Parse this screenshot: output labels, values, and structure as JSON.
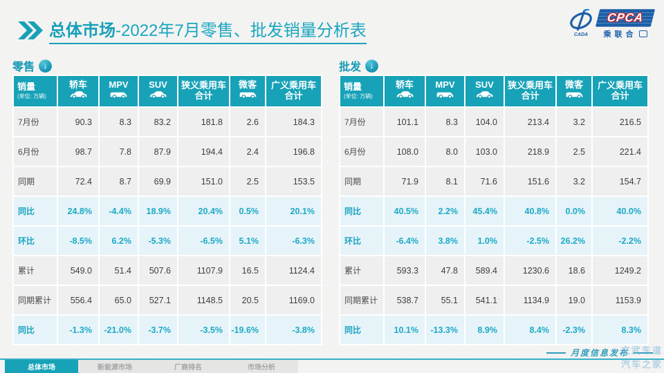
{
  "header": {
    "title_primary": "总体市场",
    "title_secondary": "-2022年7月零售、批发销量分析表",
    "accent_color": "#17a2b8"
  },
  "logo": {
    "acronym": "CPCA",
    "cn_name": "乘联合",
    "cada": "CADA"
  },
  "columns": [
    {
      "label": "销量",
      "sub": "(单位: 万辆)"
    },
    {
      "label": "轿车",
      "icon": "sedan-icon"
    },
    {
      "label": "MPV",
      "icon": "mpv-icon"
    },
    {
      "label": "SUV",
      "icon": "suv-icon"
    },
    {
      "label": "狭义乘用车",
      "label2": "合计"
    },
    {
      "label": "微客",
      "icon": "minibus-icon"
    },
    {
      "label": "广义乘用车",
      "label2": "合计"
    }
  ],
  "tables": [
    {
      "id": "retail",
      "section_label": "零售",
      "rows": [
        {
          "label": "7月份",
          "type": "normal",
          "cells": [
            "90.3",
            "8.3",
            "83.2",
            "181.8",
            "2.6",
            "184.3"
          ]
        },
        {
          "label": "6月份",
          "type": "normal",
          "cells": [
            "98.7",
            "7.8",
            "87.9",
            "194.4",
            "2.4",
            "196.8"
          ]
        },
        {
          "label": "同期",
          "type": "normal",
          "cells": [
            "72.4",
            "8.7",
            "69.9",
            "151.0",
            "2.5",
            "153.5"
          ]
        },
        {
          "label": "同比",
          "type": "pct",
          "cells": [
            "24.8%",
            "-4.4%",
            "18.9%",
            "20.4%",
            "0.5%",
            "20.1%"
          ]
        },
        {
          "label": "环比",
          "type": "pct",
          "cells": [
            "-8.5%",
            "6.2%",
            "-5.3%",
            "-6.5%",
            "5.1%",
            "-6.3%"
          ]
        },
        {
          "label": "累计",
          "type": "normal",
          "cells": [
            "549.0",
            "51.4",
            "507.6",
            "1107.9",
            "16.5",
            "1124.4"
          ]
        },
        {
          "label": "同期累计",
          "type": "normal",
          "cells": [
            "556.4",
            "65.0",
            "527.1",
            "1148.5",
            "20.5",
            "1169.0"
          ]
        },
        {
          "label": "同比",
          "type": "pct",
          "cells": [
            "-1.3%",
            "-21.0%",
            "-3.7%",
            "-3.5%",
            "-19.6%",
            "-3.8%"
          ]
        }
      ]
    },
    {
      "id": "wholesale",
      "section_label": "批发",
      "rows": [
        {
          "label": "7月份",
          "type": "normal",
          "cells": [
            "101.1",
            "8.3",
            "104.0",
            "213.4",
            "3.2",
            "216.5"
          ]
        },
        {
          "label": "6月份",
          "type": "normal",
          "cells": [
            "108.0",
            "8.0",
            "103.0",
            "218.9",
            "2.5",
            "221.4"
          ]
        },
        {
          "label": "同期",
          "type": "normal",
          "cells": [
            "71.9",
            "8.1",
            "71.6",
            "151.6",
            "3.2",
            "154.7"
          ]
        },
        {
          "label": "同比",
          "type": "pct",
          "cells": [
            "40.5%",
            "2.2%",
            "45.4%",
            "40.8%",
            "0.0%",
            "40.0%"
          ]
        },
        {
          "label": "环比",
          "type": "pct",
          "cells": [
            "-6.4%",
            "3.8%",
            "1.0%",
            "-2.5%",
            "26.2%",
            "-2.2%"
          ]
        },
        {
          "label": "累计",
          "type": "normal",
          "cells": [
            "593.3",
            "47.8",
            "589.4",
            "1230.6",
            "18.6",
            "1249.2"
          ]
        },
        {
          "label": "同期累计",
          "type": "normal",
          "cells": [
            "538.7",
            "55.1",
            "541.1",
            "1134.9",
            "19.0",
            "1153.9"
          ]
        },
        {
          "label": "同比",
          "type": "pct",
          "cells": [
            "10.1%",
            "-13.3%",
            "8.9%",
            "8.4%",
            "-2.3%",
            "8.3%"
          ]
        }
      ]
    }
  ],
  "footer": {
    "tabs": [
      {
        "label": "总体市场",
        "active": true
      },
      {
        "label": "新能源市场",
        "active": false
      },
      {
        "label": "厂商排名",
        "active": false
      },
      {
        "label": "市场分析",
        "active": false
      }
    ],
    "release_note": "月度信息发布"
  },
  "watermark": {
    "ghost_line1": "CPCA",
    "ghost_line2": "乘联合",
    "corner_line1": "文武车道",
    "corner_line2": "汽车之家"
  }
}
